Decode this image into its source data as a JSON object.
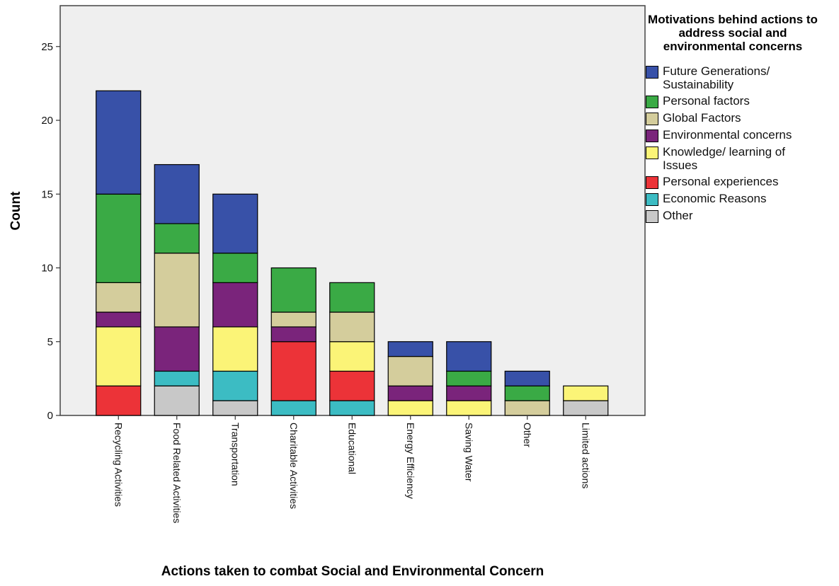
{
  "chart_data": {
    "type": "bar",
    "stacked": true,
    "xlabel": "Actions taken to combat Social and Environmental Concern",
    "ylabel": "Count",
    "ylim": [
      0,
      27.5
    ],
    "yticks": [
      0,
      5,
      10,
      15,
      20,
      25
    ],
    "grid": false,
    "legend_title": "Motivations behind actions to address social and environmental concerns",
    "legend_position": "right",
    "categories": [
      "Recycling Activities",
      "Food Related Activities",
      "Transportation",
      "Charitable Activities",
      "Educational",
      "Energy Efficiency",
      "Saving Water",
      "Other",
      "Limited actions"
    ],
    "series": [
      {
        "name": "Other",
        "color": "#c8c8c8",
        "values": [
          0,
          2,
          1,
          0,
          0,
          0,
          0,
          0,
          1
        ]
      },
      {
        "name": "Economic Reasons",
        "color": "#3cbcc3",
        "values": [
          0,
          1,
          2,
          1,
          1,
          0,
          0,
          0,
          0
        ]
      },
      {
        "name": "Personal experiences",
        "color": "#ec3338",
        "values": [
          2,
          0,
          0,
          4,
          2,
          0,
          0,
          0,
          0
        ]
      },
      {
        "name": "Knowledge/ learning of Issues",
        "color": "#fbf477",
        "values": [
          4,
          0,
          3,
          0,
          2,
          1,
          1,
          0,
          1
        ]
      },
      {
        "name": "Environmental concerns",
        "color": "#7a247b",
        "values": [
          1,
          3,
          3,
          1,
          0,
          1,
          1,
          0,
          0
        ]
      },
      {
        "name": "Global Factors",
        "color": "#d4cd9c",
        "values": [
          2,
          5,
          0,
          1,
          2,
          2,
          0,
          1,
          0
        ]
      },
      {
        "name": "Personal factors",
        "color": "#3aaa45",
        "values": [
          6,
          2,
          2,
          3,
          2,
          0,
          1,
          1,
          0
        ]
      },
      {
        "name": "Future Generations/ Sustainability",
        "color": "#3851a8",
        "values": [
          7,
          4,
          4,
          0,
          0,
          1,
          2,
          1,
          0
        ]
      }
    ],
    "legend_order": [
      {
        "label_lines": [
          "Future Generations/",
          "Sustainability"
        ],
        "color": "#3851a8"
      },
      {
        "label_lines": [
          "Personal factors"
        ],
        "color": "#3aaa45"
      },
      {
        "label_lines": [
          "Global Factors"
        ],
        "color": "#d4cd9c"
      },
      {
        "label_lines": [
          "Environmental concerns"
        ],
        "color": "#7a247b"
      },
      {
        "label_lines": [
          "Knowledge/ learning of",
          "Issues"
        ],
        "color": "#fbf477"
      },
      {
        "label_lines": [
          "Personal experiences"
        ],
        "color": "#ec3338"
      },
      {
        "label_lines": [
          "Economic Reasons"
        ],
        "color": "#3cbcc3"
      },
      {
        "label_lines": [
          "Other"
        ],
        "color": "#c8c8c8"
      }
    ],
    "plot_background": "#efefef"
  }
}
